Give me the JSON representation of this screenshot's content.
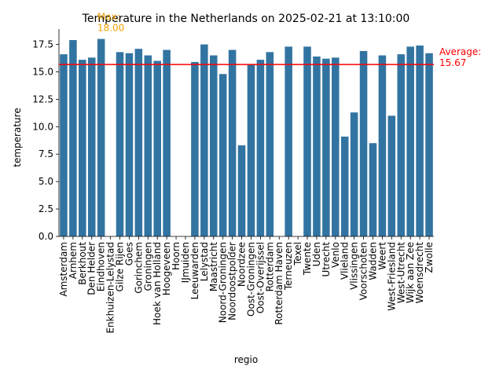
{
  "chart_data": {
    "type": "bar",
    "title": "Temperature in the Netherlands on 2025-02-21 at 13:10:00",
    "xlabel": "regio",
    "ylabel": "temperature",
    "ylim": [
      0,
      18.9
    ],
    "yticks": [
      "0.0",
      "2.5",
      "5.0",
      "7.5",
      "10.0",
      "12.5",
      "15.0",
      "17.5"
    ],
    "grid": false,
    "bar_color": "#3274a1",
    "categories": [
      "Amsterdam",
      "Arnhem",
      "Berkhout",
      "Den Helder",
      "Eindhoven",
      "Enkhuizen-Lelystad",
      "Gilze Rijen",
      "Goes",
      "Gorinchem",
      "Groningen",
      "Hoek van Holland",
      "Hoogeveen",
      "Hoorn",
      "IJmuiden",
      "Leeuwarden",
      "Lelystad",
      "Maastricht",
      "Noord-Groningen",
      "Noordoostpolder",
      "Noordzee",
      "Oost-Groningen",
      "Oost-Overijssel",
      "Rotterdam",
      "Rotterdam Haven",
      "Terneuzen",
      "Texel",
      "Twente",
      "Uden",
      "Utrecht",
      "Venlo",
      "Vlieland",
      "Vlissingen",
      "Voorschoten",
      "Wadden",
      "Weert",
      "West-Friesland",
      "West-Utrecht",
      "Wijk aan Zee",
      "Woensdrecht",
      "Zwolle"
    ],
    "values": [
      16.6,
      17.9,
      16.1,
      16.3,
      18.0,
      null,
      16.8,
      16.7,
      17.1,
      16.5,
      16.0,
      17.0,
      null,
      null,
      15.9,
      17.5,
      16.5,
      14.8,
      17.0,
      8.3,
      15.7,
      16.1,
      16.8,
      null,
      17.3,
      null,
      17.3,
      16.4,
      16.2,
      16.3,
      9.1,
      11.3,
      16.9,
      8.5,
      16.5,
      11.0,
      16.6,
      17.3,
      17.4,
      16.7
    ],
    "average": {
      "value": 15.67,
      "label": "Average:",
      "value_text": "15.67",
      "color": "#ff0000"
    },
    "max": {
      "category": "Eindhoven",
      "value": 18.0,
      "label": "Max:",
      "value_text": "18.00",
      "color": "#f0a000"
    }
  }
}
